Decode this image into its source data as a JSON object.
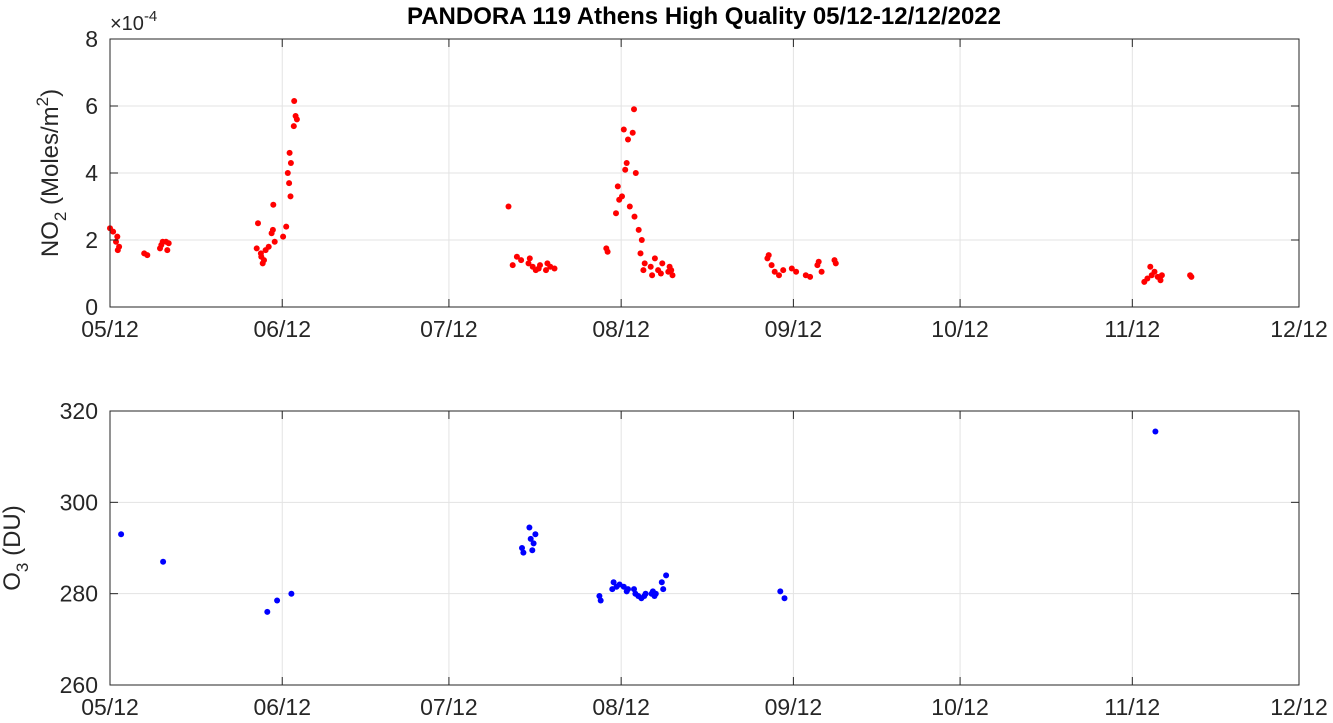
{
  "figure": {
    "title": "PANDORA 119 Athens High Quality 05/12-12/12/2022"
  },
  "chart_data": [
    {
      "type": "scatter",
      "id": "no2",
      "ylabel_main": "NO",
      "ylabel_sub": "2",
      "ylabel_rest": " (Moles/m",
      "ylabel_sup": "2",
      "ylabel_close": ")",
      "exponent_prefix": "×10",
      "exponent_power": "-4",
      "xlim": [
        "2022-05-12",
        "2022-12-12"
      ],
      "ylim": [
        0,
        8
      ],
      "y_scale_note": "values in units of 1e-4",
      "xticks": [
        "2022-05-12",
        "2022-06-12",
        "2022-07-12",
        "2022-08-12",
        "2022-09-12",
        "2022-10-12",
        "2022-11-12",
        "2022-12-12"
      ],
      "xtick_labels": [
        "05/12",
        "06/12",
        "07/12",
        "08/12",
        "09/12",
        "10/12",
        "11/12",
        "12/12"
      ],
      "yticks": [
        0,
        2,
        4,
        6,
        8
      ],
      "ytick_labels": [
        "0",
        "2",
        "4",
        "6",
        "8"
      ],
      "grid": true,
      "color": "#ff0000",
      "points": [
        [
          "2022-05-12",
          2.35
        ],
        [
          "2022-05-12",
          2.25
        ],
        [
          "2022-05-13",
          2.1
        ],
        [
          "2022-05-13",
          1.95
        ],
        [
          "2022-05-13",
          1.8
        ],
        [
          "2022-05-13",
          1.7
        ],
        [
          "2022-05-18",
          1.6
        ],
        [
          "2022-05-18",
          1.55
        ],
        [
          "2022-05-21",
          1.95
        ],
        [
          "2022-05-21",
          1.85
        ],
        [
          "2022-05-21",
          1.75
        ],
        [
          "2022-05-22",
          1.9
        ],
        [
          "2022-05-22",
          1.7
        ],
        [
          "2022-05-22",
          1.95
        ],
        [
          "2022-06-07",
          2.5
        ],
        [
          "2022-06-07",
          1.75
        ],
        [
          "2022-06-08",
          1.6
        ],
        [
          "2022-06-08",
          1.4
        ],
        [
          "2022-06-08",
          1.3
        ],
        [
          "2022-06-08",
          1.5
        ],
        [
          "2022-06-09",
          1.7
        ],
        [
          "2022-06-09",
          1.8
        ],
        [
          "2022-06-10",
          2.3
        ],
        [
          "2022-06-10",
          2.2
        ],
        [
          "2022-06-10",
          1.95
        ],
        [
          "2022-06-10",
          3.05
        ],
        [
          "2022-06-12",
          2.1
        ],
        [
          "2022-06-12",
          2.4
        ],
        [
          "2022-06-13",
          3.3
        ],
        [
          "2022-06-13",
          3.7
        ],
        [
          "2022-06-13",
          4.0
        ],
        [
          "2022-06-13",
          4.3
        ],
        [
          "2022-06-13",
          4.6
        ],
        [
          "2022-06-14",
          5.4
        ],
        [
          "2022-06-14",
          5.6
        ],
        [
          "2022-06-14",
          5.7
        ],
        [
          "2022-06-14",
          6.15
        ],
        [
          "2022-07-22",
          3.0
        ],
        [
          "2022-07-23",
          1.25
        ],
        [
          "2022-07-24",
          1.5
        ],
        [
          "2022-07-25",
          1.4
        ],
        [
          "2022-07-26",
          1.45
        ],
        [
          "2022-07-26",
          1.3
        ],
        [
          "2022-07-27",
          1.2
        ],
        [
          "2022-07-27",
          1.1
        ],
        [
          "2022-07-28",
          1.25
        ],
        [
          "2022-07-28",
          1.15
        ],
        [
          "2022-07-29",
          1.3
        ],
        [
          "2022-07-29",
          1.1
        ],
        [
          "2022-07-30",
          1.2
        ],
        [
          "2022-07-31",
          1.15
        ],
        [
          "2022-08-09",
          1.65
        ],
        [
          "2022-08-09",
          1.75
        ],
        [
          "2022-08-11",
          2.8
        ],
        [
          "2022-08-11",
          3.2
        ],
        [
          "2022-08-11",
          3.6
        ],
        [
          "2022-08-12",
          3.3
        ],
        [
          "2022-08-12",
          4.1
        ],
        [
          "2022-08-12",
          5.3
        ],
        [
          "2022-08-13",
          5.0
        ],
        [
          "2022-08-13",
          4.3
        ],
        [
          "2022-08-13",
          3.0
        ],
        [
          "2022-08-14",
          5.9
        ],
        [
          "2022-08-14",
          5.2
        ],
        [
          "2022-08-14",
          4.0
        ],
        [
          "2022-08-14",
          2.7
        ],
        [
          "2022-08-15",
          2.3
        ],
        [
          "2022-08-15",
          2.0
        ],
        [
          "2022-08-15",
          1.6
        ],
        [
          "2022-08-16",
          1.3
        ],
        [
          "2022-08-16",
          1.1
        ],
        [
          "2022-08-17",
          0.95
        ],
        [
          "2022-08-17",
          1.2
        ],
        [
          "2022-08-18",
          1.45
        ],
        [
          "2022-08-18",
          1.1
        ],
        [
          "2022-08-19",
          1.3
        ],
        [
          "2022-08-19",
          1.0
        ],
        [
          "2022-08-20",
          1.2
        ],
        [
          "2022-08-20",
          1.05
        ],
        [
          "2022-08-21",
          0.95
        ],
        [
          "2022-08-21",
          1.1
        ],
        [
          "2022-09-07",
          1.55
        ],
        [
          "2022-09-07",
          1.45
        ],
        [
          "2022-09-08",
          1.25
        ],
        [
          "2022-09-08",
          1.05
        ],
        [
          "2022-09-09",
          0.95
        ],
        [
          "2022-09-10",
          1.1
        ],
        [
          "2022-09-11",
          1.15
        ],
        [
          "2022-09-12",
          1.05
        ],
        [
          "2022-09-14",
          0.95
        ],
        [
          "2022-09-15",
          0.9
        ],
        [
          "2022-09-16",
          1.35
        ],
        [
          "2022-09-16",
          1.25
        ],
        [
          "2022-09-17",
          1.05
        ],
        [
          "2022-09-19",
          1.3
        ],
        [
          "2022-09-19",
          1.4
        ],
        [
          "2022-11-14",
          0.75
        ],
        [
          "2022-11-14",
          0.85
        ],
        [
          "2022-11-15",
          0.95
        ],
        [
          "2022-11-15",
          1.2
        ],
        [
          "2022-11-16",
          1.05
        ],
        [
          "2022-11-16",
          0.9
        ],
        [
          "2022-11-17",
          0.95
        ],
        [
          "2022-11-17",
          0.8
        ],
        [
          "2022-11-22",
          0.9
        ],
        [
          "2022-11-22",
          0.95
        ]
      ]
    },
    {
      "type": "scatter",
      "id": "o3",
      "ylabel_main": "O",
      "ylabel_sub": "3",
      "ylabel_rest": " (DU)",
      "xlim": [
        "2022-05-12",
        "2022-12-12"
      ],
      "ylim": [
        260,
        320
      ],
      "xticks": [
        "2022-05-12",
        "2022-06-12",
        "2022-07-12",
        "2022-08-12",
        "2022-09-12",
        "2022-10-12",
        "2022-11-12",
        "2022-12-12"
      ],
      "xtick_labels": [
        "05/12",
        "06/12",
        "07/12",
        "08/12",
        "09/12",
        "10/12",
        "11/12",
        "12/12"
      ],
      "yticks": [
        260,
        280,
        300,
        320
      ],
      "ytick_labels": [
        "260",
        "280",
        "300",
        "320"
      ],
      "grid": true,
      "color": "#0000ff",
      "points": [
        [
          "2022-05-14",
          293.0
        ],
        [
          "2022-05-21",
          287.0
        ],
        [
          "2022-06-09",
          276.0
        ],
        [
          "2022-06-11",
          278.5
        ],
        [
          "2022-06-13",
          280.0
        ],
        [
          "2022-07-25",
          289.0
        ],
        [
          "2022-07-25",
          290.0
        ],
        [
          "2022-07-26",
          292.0
        ],
        [
          "2022-07-26",
          294.5
        ],
        [
          "2022-07-27",
          291.0
        ],
        [
          "2022-07-27",
          289.5
        ],
        [
          "2022-07-27",
          293.0
        ],
        [
          "2022-08-08",
          278.5
        ],
        [
          "2022-08-08",
          279.5
        ],
        [
          "2022-08-10",
          282.5
        ],
        [
          "2022-08-10",
          281.0
        ],
        [
          "2022-08-11",
          281.5
        ],
        [
          "2022-08-11",
          282.0
        ],
        [
          "2022-08-12",
          281.5
        ],
        [
          "2022-08-13",
          281.0
        ],
        [
          "2022-08-13",
          280.5
        ],
        [
          "2022-08-14",
          280.0
        ],
        [
          "2022-08-14",
          281.0
        ],
        [
          "2022-08-15",
          279.5
        ],
        [
          "2022-08-15",
          279.0
        ],
        [
          "2022-08-16",
          280.0
        ],
        [
          "2022-08-16",
          279.5
        ],
        [
          "2022-08-17",
          280.5
        ],
        [
          "2022-08-17",
          280.0
        ],
        [
          "2022-08-18",
          280.0
        ],
        [
          "2022-08-18",
          279.5
        ],
        [
          "2022-08-19",
          281.0
        ],
        [
          "2022-08-19",
          282.5
        ],
        [
          "2022-08-20",
          284.0
        ],
        [
          "2022-09-09",
          280.5
        ],
        [
          "2022-09-10",
          279.0
        ],
        [
          "2022-11-16",
          315.5
        ]
      ]
    }
  ]
}
